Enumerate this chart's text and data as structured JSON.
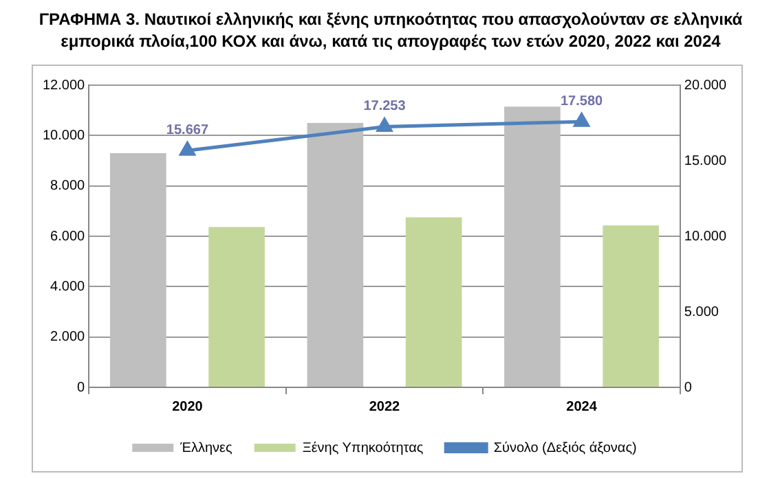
{
  "chart_data": {
    "type": "bar",
    "title": "ΓΡΑΦΗΜΑ 3. Ναυτικοί ελληνικής και ξένης υπηκοότητας που απασχολούνταν σε ελληνικά εμπορικά πλοία,100 ΚΟΧ και άνω, κατά τις απογραφές των ετών 2020, 2022 και 2024",
    "categories": [
      "2020",
      "2022",
      "2024"
    ],
    "series": [
      {
        "name": "Έλληνες",
        "color": "#bfbfbf",
        "values": [
          9300,
          10500,
          11150
        ]
      },
      {
        "name": "Ξένης Υπηκοότητας",
        "color": "#c4d79b",
        "values": [
          6370,
          6750,
          6430
        ]
      },
      {
        "name": "Σύνολο (Δεξιός άξονας)",
        "type": "line",
        "axis": "y2",
        "color": "#4f81bd",
        "marker": "triangle",
        "values": [
          15667,
          17253,
          17580
        ],
        "value_labels": [
          "15.667",
          "17.253",
          "17.580"
        ]
      }
    ],
    "ylim": [
      0,
      12000
    ],
    "yticks": [
      0,
      {
        "value": 2000,
        "label": "2.000"
      },
      {
        "value": 4000,
        "label": "4.000"
      },
      {
        "value": 6000,
        "label": "6.000"
      },
      {
        "value": 8000,
        "label": "8.000"
      },
      {
        "value": 10000,
        "label": "10.000"
      },
      {
        "value": 12000,
        "label": "12.000"
      }
    ],
    "y2lim": [
      0,
      20000
    ],
    "y2ticks": [
      0,
      {
        "value": 5000,
        "label": "5.000"
      },
      {
        "value": 10000,
        "label": "10.000"
      },
      {
        "value": 15000,
        "label": "15.000"
      },
      {
        "value": 20000,
        "label": "20.000"
      }
    ],
    "grid": "y",
    "legend": "bottom"
  }
}
